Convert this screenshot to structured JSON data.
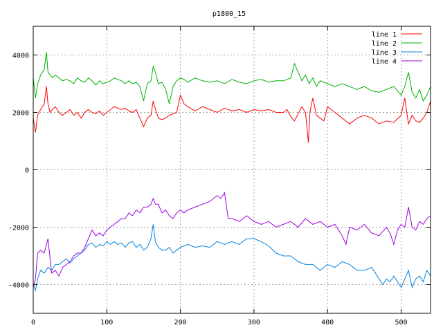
{
  "chart_data": {
    "type": "line",
    "title": "p1800_15",
    "xlabel": "",
    "ylabel": "",
    "xlim": [
      0,
      540
    ],
    "ylim": [
      -5000,
      5000
    ],
    "xticks": [
      0,
      100,
      200,
      300,
      400,
      500
    ],
    "yticks": [
      -4000,
      -2000,
      0,
      2000,
      4000
    ],
    "xtick_labels": [
      "0",
      "100",
      "200",
      "300",
      "400",
      "500"
    ],
    "ytick_labels": [
      "-4000",
      "-2000",
      "0",
      "2000",
      "4000"
    ],
    "grid": true,
    "legend_position": "top-right",
    "series": [
      {
        "name": "line 1",
        "color": "#ff0000",
        "x": [
          0,
          3,
          6,
          10,
          15,
          18,
          20,
          23,
          26,
          30,
          35,
          40,
          45,
          50,
          55,
          60,
          65,
          70,
          75,
          80,
          85,
          90,
          95,
          100,
          105,
          110,
          115,
          120,
          125,
          130,
          135,
          140,
          145,
          150,
          155,
          160,
          163,
          165,
          170,
          175,
          180,
          185,
          190,
          195,
          200,
          205,
          210,
          220,
          230,
          240,
          250,
          260,
          270,
          280,
          290,
          300,
          310,
          320,
          330,
          340,
          345,
          350,
          355,
          360,
          365,
          370,
          372,
          374,
          376,
          380,
          385,
          390,
          395,
          400,
          410,
          420,
          430,
          440,
          450,
          460,
          470,
          480,
          490,
          500,
          505,
          510,
          515,
          520,
          525,
          530,
          535,
          540
        ],
        "y": [
          1800,
          1300,
          1900,
          2100,
          2300,
          2900,
          2300,
          2000,
          2100,
          2200,
          2000,
          1900,
          2000,
          2100,
          1900,
          2000,
          1800,
          2000,
          2100,
          2000,
          1950,
          2050,
          1900,
          2000,
          2100,
          2200,
          2150,
          2100,
          2150,
          2050,
          2000,
          2100,
          1800,
          1500,
          1800,
          1900,
          2400,
          2200,
          1800,
          1750,
          1800,
          1900,
          1950,
          2000,
          2600,
          2300,
          2200,
          2050,
          2200,
          2100,
          2000,
          2150,
          2050,
          2100,
          2000,
          2100,
          2050,
          2100,
          2000,
          2000,
          2100,
          1850,
          1700,
          1950,
          2200,
          2000,
          1500,
          950,
          2000,
          2500,
          1900,
          1800,
          1700,
          2200,
          2000,
          1800,
          1600,
          1800,
          1900,
          1800,
          1600,
          1700,
          1650,
          1900,
          2500,
          1600,
          1900,
          1700,
          1650,
          1800,
          2000,
          2400
        ]
      },
      {
        "name": "line 2",
        "color": "#00b000",
        "x": [
          0,
          3,
          6,
          10,
          15,
          18,
          20,
          23,
          26,
          30,
          35,
          40,
          45,
          50,
          55,
          60,
          65,
          70,
          75,
          80,
          85,
          90,
          95,
          100,
          105,
          110,
          115,
          120,
          125,
          130,
          135,
          140,
          145,
          150,
          155,
          160,
          163,
          166,
          170,
          175,
          180,
          185,
          190,
          195,
          200,
          205,
          210,
          220,
          230,
          240,
          250,
          260,
          270,
          280,
          290,
          300,
          310,
          320,
          330,
          340,
          350,
          355,
          360,
          365,
          370,
          375,
          380,
          385,
          390,
          400,
          410,
          420,
          430,
          440,
          450,
          460,
          470,
          480,
          490,
          500,
          505,
          510,
          515,
          520,
          525,
          530,
          535,
          540
        ],
        "y": [
          3200,
          2500,
          3000,
          3300,
          3500,
          4100,
          3400,
          3300,
          3200,
          3300,
          3200,
          3100,
          3150,
          3100,
          3000,
          3200,
          3100,
          3050,
          3200,
          3100,
          2950,
          3100,
          3000,
          3050,
          3100,
          3200,
          3150,
          3100,
          3000,
          3100,
          3000,
          3050,
          2900,
          2400,
          3000,
          3100,
          3600,
          3400,
          3000,
          3050,
          2800,
          2300,
          2900,
          3100,
          3200,
          3150,
          3050,
          3200,
          3100,
          3050,
          3100,
          3000,
          3150,
          3050,
          3000,
          3100,
          3150,
          3050,
          3100,
          3100,
          3200,
          3700,
          3400,
          3100,
          3300,
          3000,
          3200,
          2900,
          3100,
          3000,
          2900,
          3000,
          2900,
          2800,
          2900,
          2750,
          2700,
          2800,
          2900,
          2600,
          2900,
          3400,
          2700,
          2500,
          2800,
          2400,
          2600,
          2900
        ]
      },
      {
        "name": "line 3",
        "color": "#0080e0",
        "x": [
          0,
          3,
          6,
          10,
          15,
          20,
          25,
          30,
          35,
          40,
          45,
          50,
          55,
          60,
          65,
          70,
          75,
          80,
          85,
          90,
          95,
          100,
          105,
          110,
          115,
          120,
          125,
          130,
          135,
          140,
          145,
          150,
          155,
          160,
          163,
          166,
          170,
          175,
          180,
          185,
          190,
          195,
          200,
          210,
          220,
          230,
          240,
          250,
          260,
          270,
          280,
          290,
          300,
          310,
          320,
          330,
          340,
          350,
          360,
          370,
          380,
          390,
          400,
          410,
          420,
          430,
          440,
          450,
          460,
          470,
          475,
          480,
          485,
          490,
          495,
          500,
          505,
          510,
          515,
          520,
          525,
          530,
          535,
          540
        ],
        "y": [
          -4000,
          -4200,
          -3800,
          -3500,
          -3600,
          -3400,
          -3500,
          -3300,
          -3300,
          -3200,
          -3100,
          -3250,
          -3100,
          -3000,
          -2900,
          -2800,
          -2600,
          -2550,
          -2700,
          -2600,
          -2650,
          -2500,
          -2600,
          -2500,
          -2600,
          -2550,
          -2700,
          -2550,
          -2500,
          -2700,
          -2600,
          -2800,
          -2700,
          -2400,
          -1900,
          -2500,
          -2700,
          -2800,
          -2800,
          -2700,
          -2900,
          -2800,
          -2700,
          -2600,
          -2700,
          -2650,
          -2700,
          -2500,
          -2600,
          -2500,
          -2600,
          -2400,
          -2400,
          -2500,
          -2650,
          -2900,
          -3000,
          -3000,
          -3200,
          -3300,
          -3300,
          -3500,
          -3300,
          -3400,
          -3200,
          -3300,
          -3500,
          -3500,
          -3400,
          -3800,
          -4000,
          -3800,
          -3900,
          -3700,
          -3900,
          -4100,
          -3800,
          -3500,
          -4100,
          -3800,
          -3700,
          -3900,
          -3500,
          -3700
        ]
      },
      {
        "name": "line 4",
        "color": "#a000e0",
        "x": [
          0,
          3,
          6,
          10,
          15,
          20,
          25,
          30,
          35,
          40,
          45,
          50,
          55,
          60,
          65,
          70,
          75,
          80,
          85,
          90,
          95,
          100,
          105,
          110,
          115,
          120,
          125,
          130,
          135,
          140,
          145,
          150,
          155,
          160,
          163,
          166,
          170,
          175,
          180,
          185,
          190,
          195,
          200,
          205,
          210,
          220,
          230,
          240,
          250,
          255,
          260,
          265,
          270,
          280,
          290,
          300,
          310,
          320,
          330,
          340,
          350,
          360,
          370,
          380,
          390,
          400,
          410,
          420,
          425,
          430,
          440,
          450,
          460,
          470,
          480,
          485,
          490,
          495,
          500,
          505,
          510,
          515,
          520,
          525,
          530,
          535,
          540
        ],
        "y": [
          -4100,
          -3800,
          -2900,
          -2800,
          -2900,
          -2400,
          -3600,
          -3500,
          -3700,
          -3400,
          -3300,
          -3200,
          -3000,
          -2900,
          -2900,
          -2700,
          -2400,
          -2100,
          -2300,
          -2200,
          -2300,
          -2100,
          -2000,
          -1900,
          -1800,
          -1700,
          -1700,
          -1500,
          -1600,
          -1400,
          -1500,
          -1300,
          -1300,
          -1200,
          -1000,
          -1200,
          -1200,
          -1500,
          -1400,
          -1600,
          -1700,
          -1500,
          -1400,
          -1500,
          -1400,
          -1300,
          -1200,
          -1100,
          -900,
          -1000,
          -800,
          -1700,
          -1700,
          -1800,
          -1600,
          -1800,
          -1900,
          -1800,
          -2000,
          -1900,
          -1800,
          -2000,
          -1700,
          -1900,
          -1800,
          -2000,
          -1900,
          -2300,
          -2600,
          -2000,
          -2100,
          -1900,
          -2200,
          -2300,
          -2000,
          -2200,
          -2600,
          -2100,
          -1900,
          -2000,
          -1300,
          -2000,
          -2100,
          -1800,
          -1900,
          -1700,
          -1600
        ]
      }
    ]
  }
}
